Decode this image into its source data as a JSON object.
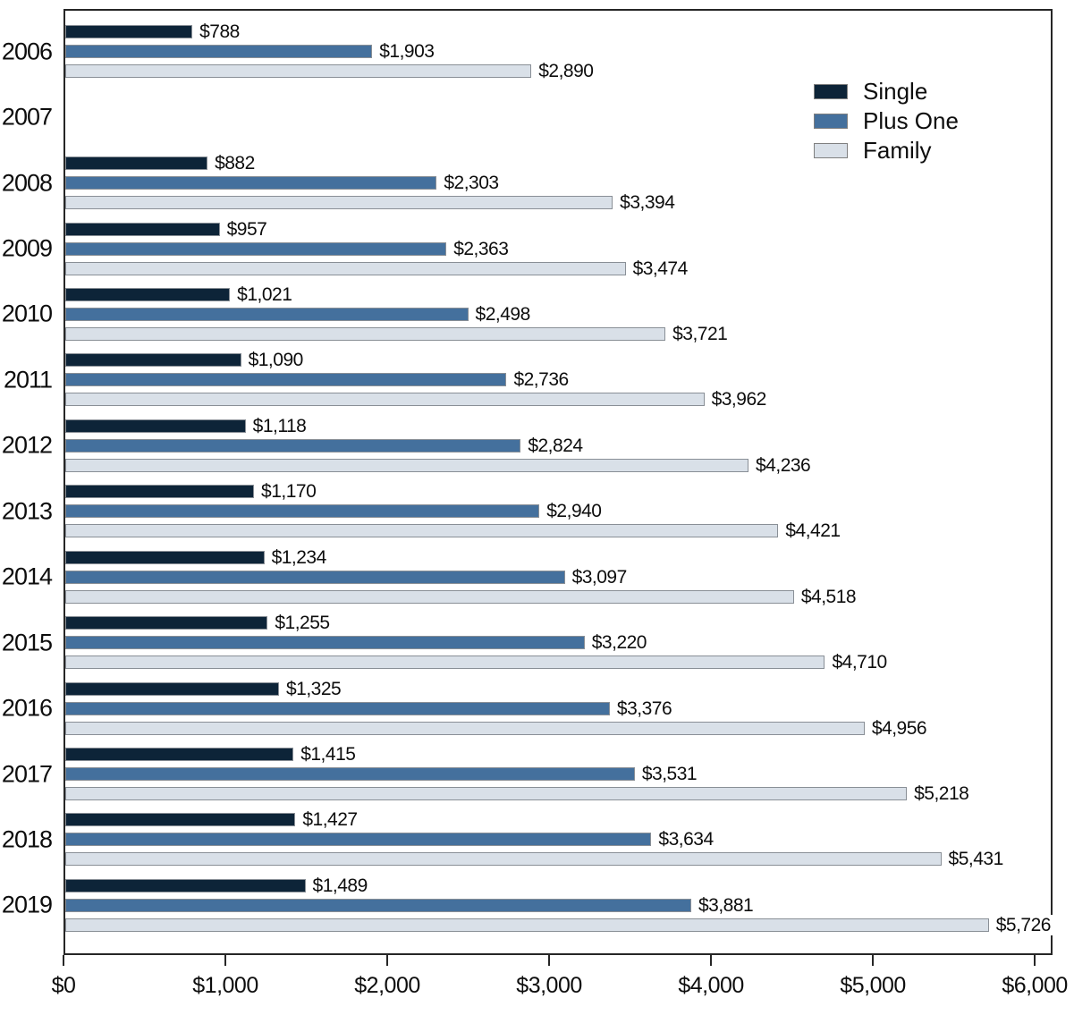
{
  "chart_data": {
    "type": "bar",
    "orientation": "horizontal",
    "title": "",
    "xlabel": "",
    "ylabel": "",
    "categories": [
      "2006",
      "2007",
      "2008",
      "2009",
      "2010",
      "2011",
      "2012",
      "2013",
      "2014",
      "2015",
      "2016",
      "2017",
      "2018",
      "2019"
    ],
    "series": [
      {
        "name": "Single",
        "color": "#0d2438",
        "values": [
          788,
          null,
          882,
          957,
          1021,
          1090,
          1118,
          1170,
          1234,
          1255,
          1325,
          1415,
          1427,
          1489
        ],
        "labels": [
          "$788",
          null,
          "$882",
          "$957",
          "$1,021",
          "$1,090",
          "$1,118",
          "$1,170",
          "$1,234",
          "$1,255",
          "$1,325",
          "$1,415",
          "$1,427",
          "$1,489"
        ]
      },
      {
        "name": "Plus One",
        "color": "#44709d",
        "values": [
          1903,
          null,
          2303,
          2363,
          2498,
          2736,
          2824,
          2940,
          3097,
          3220,
          3376,
          3531,
          3634,
          3881
        ],
        "labels": [
          "$1,903",
          null,
          "$2,303",
          "$2,363",
          "$2,498",
          "$2,736",
          "$2,824",
          "$2,940",
          "$3,097",
          "$3,220",
          "$3,376",
          "$3,531",
          "$3,634",
          "$3,881"
        ]
      },
      {
        "name": "Family",
        "color": "#d9e0e8",
        "values": [
          2890,
          null,
          3394,
          3474,
          3721,
          3962,
          4236,
          4421,
          4518,
          4710,
          4956,
          5218,
          5431,
          5726
        ],
        "labels": [
          "$2,890",
          null,
          "$3,394",
          "$3,474",
          "$3,721",
          "$3,962",
          "$4,236",
          "$4,421",
          "$4,518",
          "$4,710",
          "$4,956",
          "$5,218",
          "$5,431",
          "$5,726"
        ]
      }
    ],
    "x_ticks": [
      {
        "value": 0,
        "label": "$0"
      },
      {
        "value": 1000,
        "label": "$1,000"
      },
      {
        "value": 2000,
        "label": "$2,000"
      },
      {
        "value": 3000,
        "label": "$3,000"
      },
      {
        "value": 4000,
        "label": "$4,000"
      },
      {
        "value": 5000,
        "label": "$5,000"
      },
      {
        "value": 6000,
        "label": "$6,000"
      }
    ],
    "xlim": [
      0,
      6110
    ],
    "grid": false,
    "legend": {
      "position": "top-right",
      "items": [
        "Single",
        "Plus One",
        "Family"
      ]
    }
  },
  "colors": {
    "plot_border": "#262626",
    "bar_border": "#898f96",
    "background": "#ffffff",
    "text": "#0d0d0d"
  }
}
